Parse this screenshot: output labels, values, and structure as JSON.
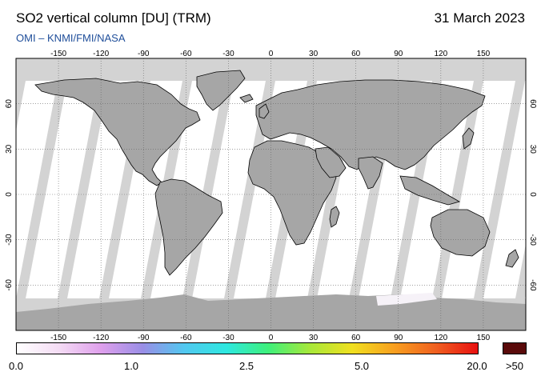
{
  "header": {
    "title": "SO2 vertical column [DU] (TRM)",
    "date": "31 March 2023",
    "subtitle": "OMI  –  KNMI/FMI/NASA"
  },
  "map": {
    "projection": "equirectangular",
    "lon_range": [
      -180,
      180
    ],
    "lat_range": [
      -90,
      90
    ],
    "lon_ticks": [
      "-150",
      "-120",
      "-90",
      "-60",
      "-30",
      "0",
      "30",
      "60",
      "90",
      "120",
      "150"
    ],
    "lat_ticks": [
      "60",
      "30",
      "0",
      "-30",
      "-60"
    ],
    "gridlines": true,
    "colors": {
      "no_data": "#d3d3d3",
      "land_no_data": "#a6a6a6",
      "data_background": "#ffffff",
      "coastline": "#000000"
    }
  },
  "colorbar": {
    "labels": [
      "0.0",
      "1.0",
      "2.5",
      "5.0",
      "20.0"
    ],
    "overflow_label": ">50",
    "overflow_color": "#5a0a0a",
    "stops": [
      "#ffffff",
      "#f4dcf4",
      "#dfa0ec",
      "#9a8ee6",
      "#52c8f0",
      "#2ee8e0",
      "#3ef07c",
      "#a8e83a",
      "#f0e020",
      "#f8a020",
      "#f06020",
      "#e81010"
    ]
  }
}
